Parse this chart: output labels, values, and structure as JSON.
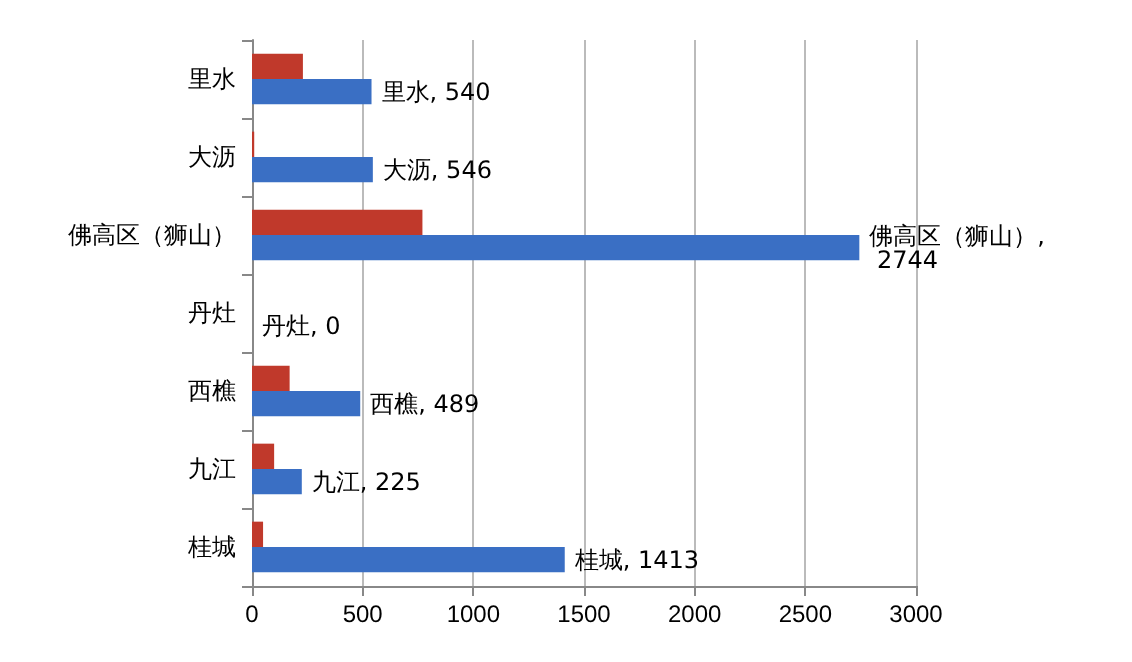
{
  "chart_data": {
    "type": "bar",
    "orientation": "horizontal",
    "categories": [
      "里水",
      "大沥",
      "佛高区（狮山）",
      "丹灶",
      "西樵",
      "九江",
      "桂城"
    ],
    "series": [
      {
        "color": "#c0392b",
        "values": [
          230,
          10,
          770,
          0,
          170,
          100,
          50
        ]
      },
      {
        "color": "#3a6fc4",
        "values": [
          540,
          546,
          2744,
          0,
          489,
          225,
          1413
        ],
        "value_labels": [
          "里水, 540",
          "大沥, 546",
          "佛高区（狮山）, 2744",
          "丹灶, 0",
          "西樵, 489",
          "九江, 225",
          "桂城, 1413"
        ]
      }
    ],
    "xlim": [
      0,
      3000
    ],
    "xticks": [
      0,
      500,
      1000,
      1500,
      2000,
      2500,
      3000
    ],
    "grid": "x"
  }
}
